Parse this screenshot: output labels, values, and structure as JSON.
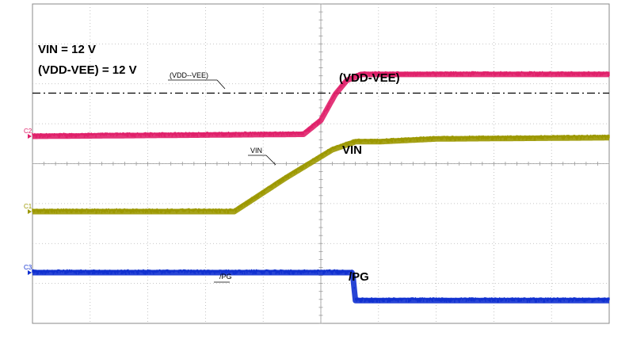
{
  "chart_data": {
    "type": "line",
    "title": "",
    "xlabel": "",
    "ylabel": "",
    "grid": true,
    "divisions": {
      "x": 10,
      "y": 8
    },
    "annotations": {
      "conditions": [
        "VIN = 12 V",
        "(VDD-VEE) = 12 V"
      ],
      "threshold_label": "(VDD--VEE)",
      "vin_marker": "VIN",
      "pg_marker": "/PG"
    },
    "series": [
      {
        "name": "(VDD-VEE)",
        "channel": "C2",
        "color": "#e0206a",
        "ground_level": 0,
        "x": [
          0,
          4.7,
          5.0,
          5.25,
          5.45,
          5.7,
          6.05,
          10
        ],
        "y": [
          0,
          0.05,
          0.4,
          1.05,
          1.4,
          1.55,
          1.55,
          1.55
        ]
      },
      {
        "name": "VIN",
        "channel": "C1",
        "color": "#9c9800",
        "ground_level": 0,
        "x": [
          0,
          3.5,
          4.4,
          5.2,
          5.6,
          6.0,
          7.0,
          10
        ],
        "y": [
          0,
          0,
          0.85,
          1.55,
          1.75,
          1.75,
          1.82,
          1.85
        ]
      },
      {
        "name": "/PG",
        "channel": "C3",
        "color": "#1030d0",
        "ground_level": 0,
        "x": [
          0,
          5.55,
          5.6,
          10
        ],
        "y": [
          0.0,
          0.0,
          -0.7,
          -0.7
        ]
      }
    ]
  }
}
